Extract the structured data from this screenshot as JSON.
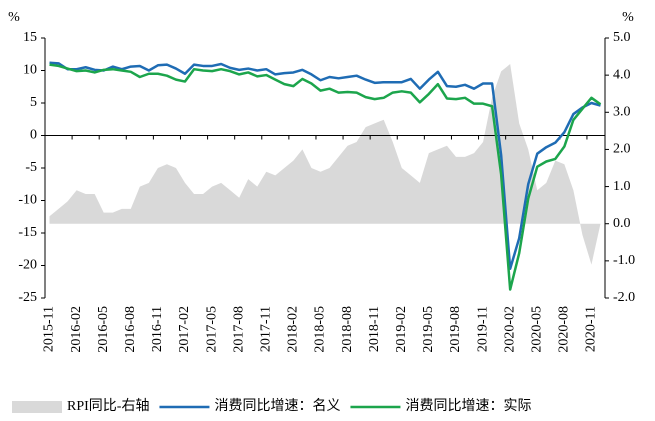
{
  "chart_data": {
    "type": "line",
    "y_unit": "%",
    "y2_unit": "%",
    "categories": [
      "2015-11",
      null,
      null,
      "2016-02",
      null,
      null,
      "2016-05",
      null,
      null,
      "2016-08",
      null,
      null,
      "2016-11",
      null,
      null,
      "2017-02",
      null,
      null,
      "2017-05",
      null,
      null,
      "2017-08",
      null,
      null,
      "2017-11",
      null,
      null,
      "2018-02",
      null,
      null,
      "2018-05",
      null,
      null,
      "2018-08",
      null,
      null,
      "2018-11",
      null,
      null,
      "2019-02",
      null,
      null,
      "2019-05",
      null,
      null,
      "2019-08",
      null,
      null,
      "2019-11",
      null,
      null,
      "2020-02",
      null,
      null,
      "2020-05",
      null,
      null,
      "2020-08",
      null,
      null,
      "2020-11",
      null
    ],
    "series": [
      {
        "name": "RPI同比-右轴",
        "kind": "area",
        "axis": "y2",
        "color": "#d9d9d9",
        "values": [
          0.2,
          0.4,
          0.6,
          0.9,
          0.8,
          0.8,
          0.3,
          0.3,
          0.4,
          0.4,
          1.0,
          1.1,
          1.5,
          1.6,
          1.5,
          1.1,
          0.8,
          0.8,
          1.0,
          1.1,
          0.9,
          0.7,
          1.2,
          1.0,
          1.4,
          1.3,
          1.5,
          1.7,
          2.0,
          1.5,
          1.4,
          1.5,
          1.8,
          2.1,
          2.2,
          2.6,
          2.7,
          2.8,
          2.2,
          1.5,
          1.3,
          1.1,
          1.9,
          2.0,
          2.1,
          1.8,
          1.8,
          1.9,
          2.2,
          3.4,
          4.1,
          4.3,
          2.7,
          2.0,
          0.9,
          1.1,
          1.7,
          1.6,
          0.9,
          -0.3,
          -1.1,
          0.0
        ]
      },
      {
        "name": "消费同比增速：名义",
        "kind": "line",
        "color": "#1f6cb4",
        "values": [
          11.2,
          11.1,
          10.2,
          10.2,
          10.5,
          10.1,
          10.0,
          10.6,
          10.2,
          10.6,
          10.7,
          10.0,
          10.8,
          10.9,
          10.3,
          9.5,
          10.9,
          10.7,
          10.7,
          11.0,
          10.4,
          10.1,
          10.3,
          10.0,
          10.2,
          9.4,
          9.6,
          9.7,
          10.1,
          9.4,
          8.5,
          9.0,
          8.8,
          9.0,
          9.2,
          8.6,
          8.1,
          8.2,
          8.2,
          8.2,
          8.7,
          7.2,
          8.6,
          9.8,
          7.6,
          7.5,
          7.8,
          7.2,
          8.0,
          8.0,
          -3.0,
          -20.5,
          -15.8,
          -7.5,
          -2.8,
          -1.8,
          -1.1,
          0.5,
          3.3,
          4.3,
          5.0,
          4.6
        ]
      },
      {
        "name": "消费同比增速：实际",
        "kind": "line",
        "color": "#1ca54c",
        "values": [
          10.9,
          10.7,
          10.3,
          9.9,
          10.0,
          9.7,
          10.1,
          10.2,
          10.0,
          9.8,
          9.0,
          9.5,
          9.5,
          9.2,
          8.6,
          8.3,
          10.2,
          10.0,
          9.9,
          10.2,
          9.9,
          9.4,
          9.7,
          9.1,
          9.3,
          8.6,
          7.9,
          7.6,
          8.7,
          8.0,
          6.9,
          7.2,
          6.6,
          6.7,
          6.6,
          5.9,
          5.6,
          5.8,
          6.6,
          6.8,
          6.6,
          5.1,
          6.4,
          7.9,
          5.7,
          5.6,
          5.8,
          4.9,
          4.9,
          4.5,
          -6.0,
          -23.7,
          -18.1,
          -9.7,
          -4.8,
          -4.0,
          -3.6,
          -1.7,
          2.4,
          4.1,
          5.8,
          4.8
        ]
      }
    ],
    "ylim": [
      -25,
      15
    ],
    "yticks": [
      -25,
      -20,
      -15,
      -10,
      -5,
      0,
      5,
      10,
      15
    ],
    "y2lim": [
      -2,
      5
    ],
    "y2ticks": [
      {
        "value": -2,
        "label": "-2.0"
      },
      {
        "value": -1,
        "label": "-1.0"
      },
      {
        "value": 0,
        "label": "0.0"
      },
      {
        "value": 1,
        "label": "1.0"
      },
      {
        "value": 2,
        "label": "2.0"
      },
      {
        "value": 3,
        "label": "3.0"
      },
      {
        "value": 4,
        "label": "4.0"
      },
      {
        "value": 5,
        "label": "5.0"
      }
    ],
    "legend": "bottom"
  }
}
